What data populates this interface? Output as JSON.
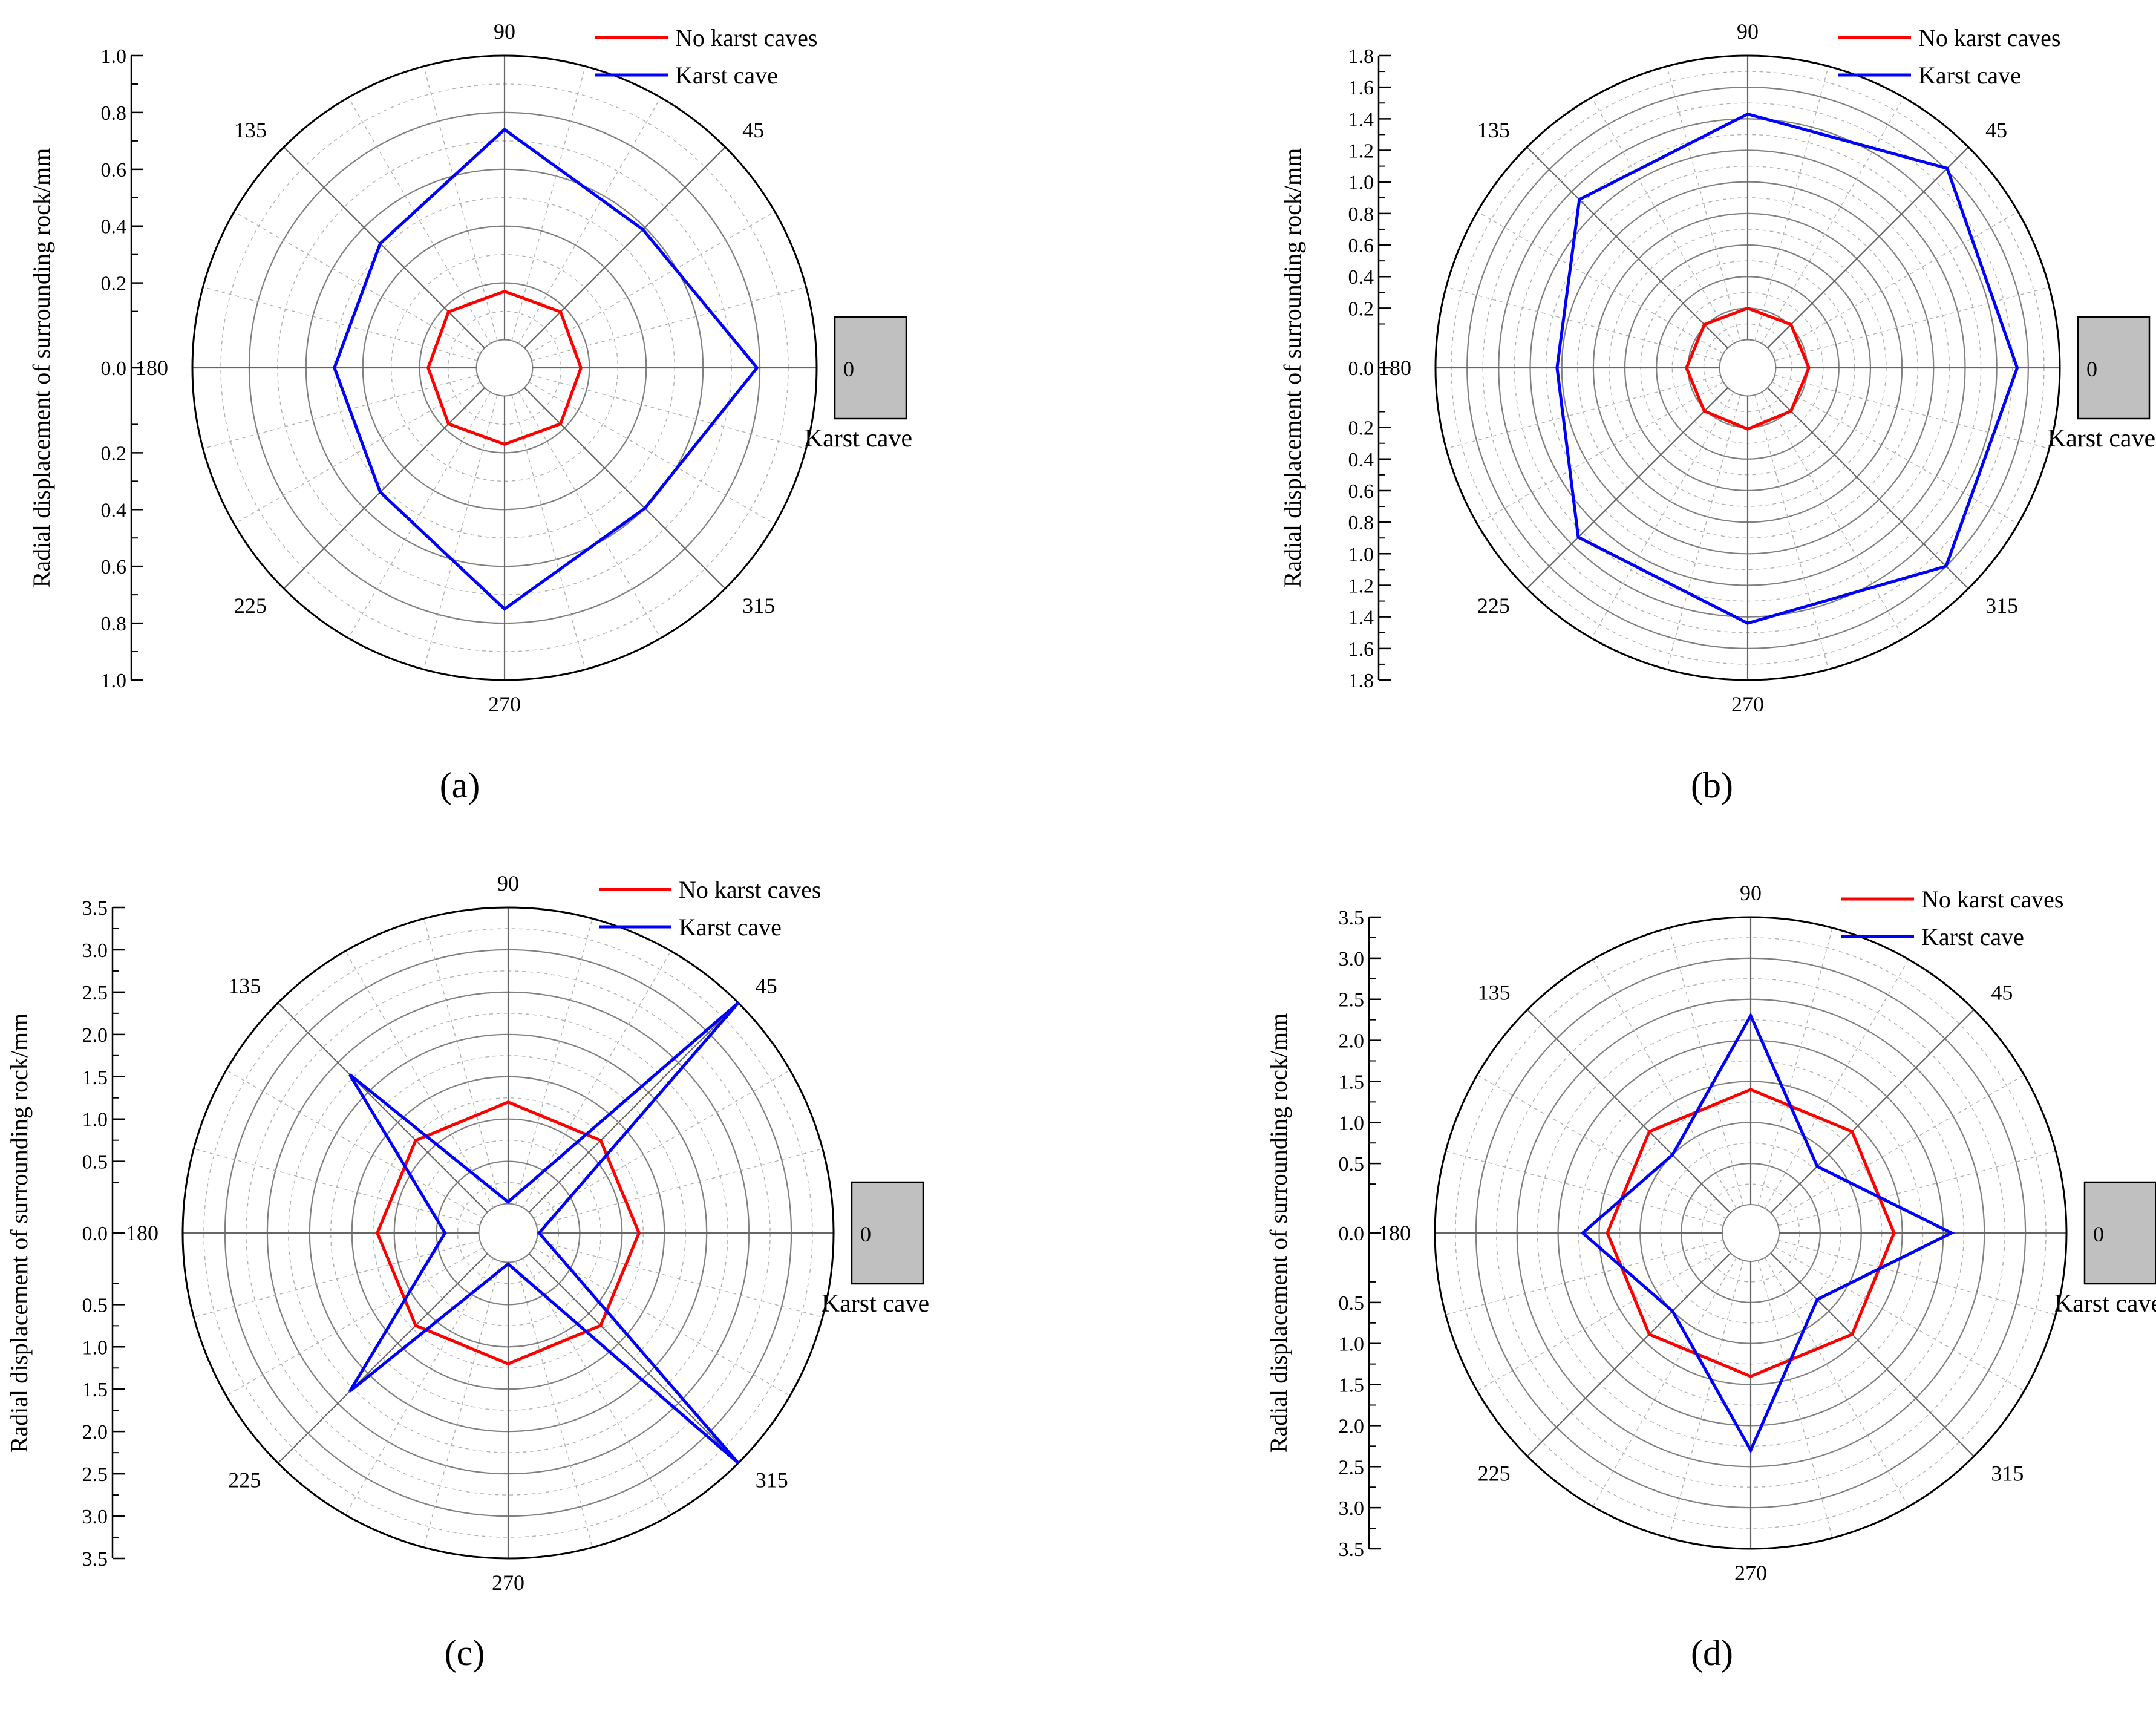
{
  "figure": {
    "y_axis_label": "Radial displacement of surrounding rock/mm",
    "legend_labels": [
      "No karst caves",
      "Karst cave"
    ],
    "cave_label": "Karst cave",
    "cave_angle_label": "0",
    "angle_labels": [
      "0",
      "45",
      "90",
      "135",
      "180",
      "225",
      "270",
      "315"
    ]
  },
  "colors": {
    "no_caves": "#ff0000",
    "karst_cave": "#0000ff",
    "cave_fill": "#c0c0c0",
    "major_grid": "#808080",
    "minor_grid": "#b0b0b0"
  },
  "chart_data": [
    {
      "type": "polar-line",
      "panel_label": "(a)",
      "panel_letter": "a",
      "r_max": 1.0,
      "tick_values": [
        "0.0",
        "0.2",
        "0.4",
        "0.6",
        "0.8",
        "1.0"
      ],
      "theta_deg": [
        0,
        45,
        90,
        135,
        180,
        225,
        270,
        315
      ],
      "series": [
        {
          "name": "No karst caves",
          "values": [
            0.17,
            0.18,
            0.17,
            0.18,
            0.17,
            0.18,
            0.17,
            0.18
          ]
        },
        {
          "name": "Karst cave",
          "values": [
            0.79,
            0.59,
            0.74,
            0.52,
            0.5,
            0.52,
            0.75,
            0.6
          ]
        }
      ]
    },
    {
      "type": "polar-line",
      "panel_label": "(b)",
      "panel_letter": "b",
      "r_max": 1.8,
      "tick_values": [
        "0.0",
        "0.2",
        "0.4",
        "0.6",
        "0.8",
        "1.0",
        "1.2",
        "1.4",
        "1.6",
        "1.8"
      ],
      "theta_deg": [
        0,
        45,
        90,
        135,
        180,
        225,
        270,
        315
      ],
      "series": [
        {
          "name": "No karst caves",
          "values": [
            0.21,
            0.21,
            0.2,
            0.21,
            0.21,
            0.21,
            0.21,
            0.21
          ]
        },
        {
          "name": "Karst cave",
          "values": [
            1.53,
            1.61,
            1.43,
            1.33,
            1.03,
            1.34,
            1.44,
            1.6
          ]
        }
      ]
    },
    {
      "type": "polar-line",
      "panel_label": "(c)",
      "panel_letter": "c",
      "r_max": 3.5,
      "tick_values": [
        "0.0",
        "0.5",
        "1.0",
        "1.5",
        "2.0",
        "2.5",
        "3.0",
        "3.5"
      ],
      "theta_deg": [
        0,
        45,
        90,
        135,
        180,
        225,
        270,
        315
      ],
      "series": [
        {
          "name": "No karst caves",
          "values": [
            1.2,
            1.2,
            1.2,
            1.2,
            1.2,
            1.2,
            1.2,
            1.2
          ]
        },
        {
          "name": "Karst cave",
          "values": [
            0.02,
            3.5,
            0.02,
            2.3,
            0.4,
            2.3,
            0.02,
            3.5
          ]
        }
      ]
    },
    {
      "type": "polar-line",
      "panel_label": "(d)",
      "panel_letter": "d",
      "r_max": 3.5,
      "tick_values": [
        "0.0",
        "0.5",
        "1.0",
        "1.5",
        "2.0",
        "2.5",
        "3.0",
        "3.5"
      ],
      "theta_deg": [
        0,
        45,
        90,
        135,
        180,
        225,
        270,
        315
      ],
      "series": [
        {
          "name": "No karst caves",
          "values": [
            1.4,
            1.4,
            1.4,
            1.4,
            1.4,
            1.4,
            1.4,
            1.4
          ]
        },
        {
          "name": "Karst cave",
          "values": [
            2.1,
            0.8,
            2.3,
            1.0,
            1.7,
            1.0,
            2.3,
            0.8
          ]
        }
      ]
    }
  ]
}
